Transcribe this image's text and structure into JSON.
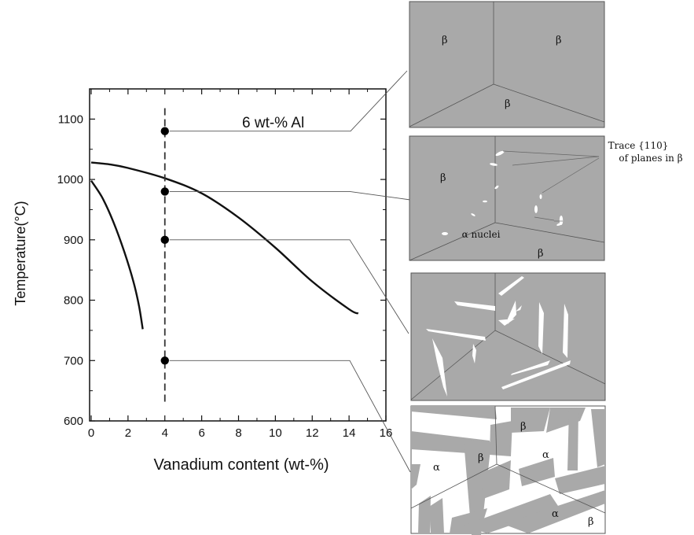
{
  "chart_data": {
    "type": "line",
    "title": "",
    "xlabel": "Vanadium content (wt-%)",
    "ylabel": "Temperature(°C)",
    "xlim": [
      0,
      16
    ],
    "ylim": [
      600,
      1150
    ],
    "x_ticks": [
      "0",
      "2",
      "4",
      "6",
      "8",
      "10",
      "12",
      "14",
      "16"
    ],
    "y_ticks": [
      "600",
      "700",
      "800",
      "900",
      "1000",
      "1100"
    ],
    "series": [
      {
        "name": "",
        "x": [
          0,
          1,
          2,
          4,
          6,
          8,
          10,
          12,
          14,
          14.5
        ],
        "y": [
          1028,
          1025,
          1019,
          1002,
          977,
          937,
          887,
          831,
          785,
          778
        ]
      },
      {
        "name": "",
        "x": [
          0,
          0.6,
          1.2,
          1.8,
          2.3,
          2.6,
          2.8
        ],
        "y": [
          998,
          970,
          930,
          880,
          830,
          790,
          752
        ]
      }
    ],
    "composition_line": {
      "x": 4,
      "y_from": 627,
      "y_to": 1118
    },
    "points": [
      {
        "x": 4,
        "y": 1080
      },
      {
        "x": 4,
        "y": 980
      },
      {
        "x": 4,
        "y": 900
      },
      {
        "x": 4,
        "y": 700
      }
    ],
    "annotation": "6 wt-% Al",
    "grid": false
  },
  "micrographs": {
    "panel1": {
      "labels": [
        "β",
        "β",
        "β"
      ]
    },
    "panel2": {
      "labels": [
        "β",
        "β"
      ],
      "nuclei_label": "α nuclei",
      "trace_label_line1": "Trace {110}",
      "trace_label_line2": "of planes in β"
    },
    "panel4": {
      "labels": [
        "α",
        "β",
        "β",
        "α",
        "α",
        "β"
      ]
    }
  },
  "colors": {
    "micrograph_gray": "#a9a9a9",
    "alpha_phase": "#ffffff",
    "line": "#111111"
  }
}
